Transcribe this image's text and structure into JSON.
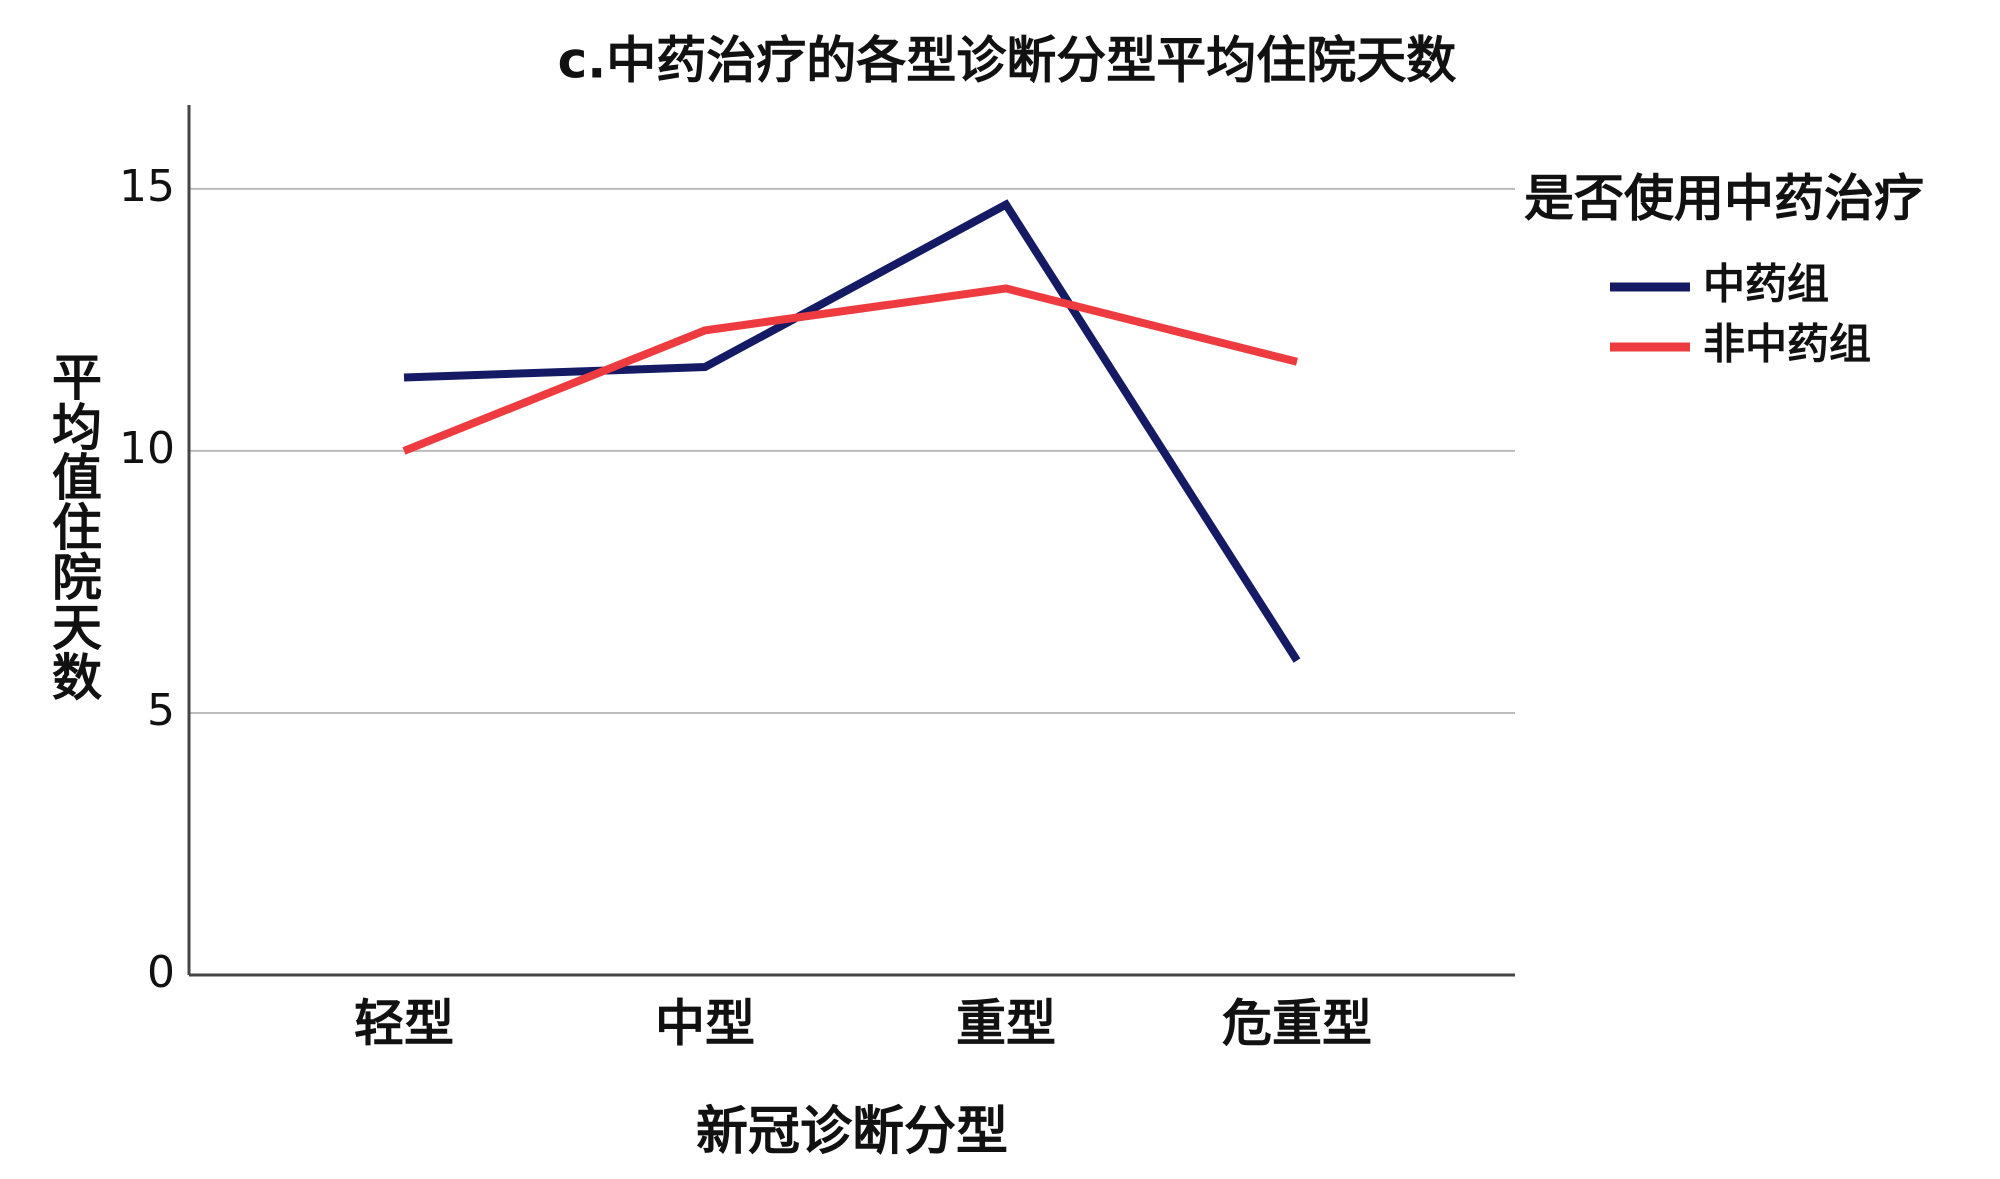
{
  "chart_data": {
    "type": "line",
    "title": "c.中药治疗的各型诊断分型平均住院天数",
    "x_label": "新冠诊断分型",
    "y_label": "平均值住院天数",
    "legend_title": "是否使用中药治疗",
    "categories": [
      "轻型",
      "中型",
      "重型",
      "危重型"
    ],
    "series": [
      {
        "name": "中药组",
        "color": "#141a63",
        "values": [
          11.4,
          11.6,
          14.7,
          6.0
        ]
      },
      {
        "name": "非中药组",
        "color": "#ee3b3f",
        "values": [
          10.0,
          12.3,
          13.1,
          11.7
        ]
      }
    ],
    "ylim": [
      0,
      16.6
    ],
    "yticks": [
      0,
      5,
      10,
      15
    ],
    "grid": true,
    "legend": "right"
  }
}
